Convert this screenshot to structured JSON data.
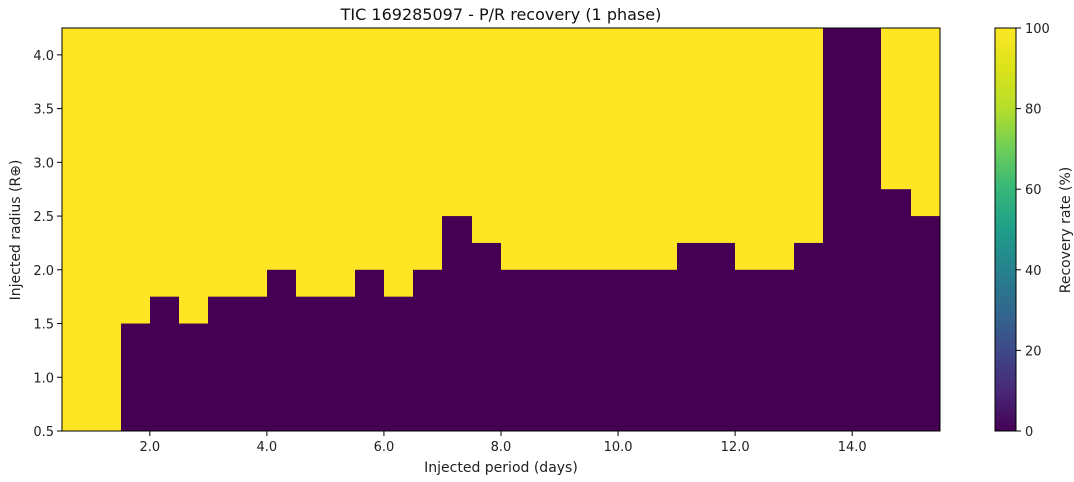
{
  "chart_data": {
    "type": "heatmap",
    "title": "TIC 169285097 - P/R recovery (1 phase)",
    "xlabel": "Injected period (days)",
    "ylabel": "Injected radius (R⊕)",
    "xlim": [
      0.5,
      15.5
    ],
    "ylim": [
      0.5,
      4.25
    ],
    "x_ticks": [
      2.0,
      4.0,
      6.0,
      8.0,
      10.0,
      12.0,
      14.0
    ],
    "x_tick_labels": [
      "2.0",
      "4.0",
      "6.0",
      "8.0",
      "10.0",
      "12.0",
      "14.0"
    ],
    "y_ticks": [
      0.5,
      1.0,
      1.5,
      2.0,
      2.5,
      3.0,
      3.5,
      4.0
    ],
    "y_tick_labels": [
      "0.5",
      "1.0",
      "1.5",
      "2.0",
      "2.5",
      "3.0",
      "3.5",
      "4.0"
    ],
    "x_bin_width": 0.5,
    "x_bin_starts": [
      0.5,
      1.0,
      1.5,
      2.0,
      2.5,
      3.0,
      3.5,
      4.0,
      4.5,
      5.0,
      5.5,
      6.0,
      6.5,
      7.0,
      7.5,
      8.0,
      8.5,
      9.0,
      9.5,
      10.0,
      10.5,
      11.0,
      11.5,
      12.0,
      12.5,
      13.0,
      13.5,
      14.0,
      14.5,
      15.0
    ],
    "not_recovered_below_radius": [
      0.5,
      0.5,
      1.5,
      1.75,
      1.5,
      1.75,
      1.75,
      2.0,
      1.75,
      1.75,
      2.0,
      1.75,
      2.0,
      2.5,
      2.25,
      2.0,
      2.0,
      2.0,
      2.0,
      2.0,
      2.0,
      2.25,
      2.25,
      2.0,
      2.0,
      2.25,
      4.25,
      4.25,
      2.75,
      2.5
    ],
    "recovered_value": 100,
    "not_recovered_value": 0,
    "colorbar": {
      "label": "Recovery rate (%)",
      "range": [
        0,
        100
      ],
      "ticks": [
        0,
        20,
        40,
        60,
        80,
        100
      ],
      "tick_labels": [
        "0",
        "20",
        "40",
        "60",
        "80",
        "100"
      ],
      "colormap": "viridis",
      "color_low": "#440154",
      "color_high": "#fde725"
    }
  }
}
